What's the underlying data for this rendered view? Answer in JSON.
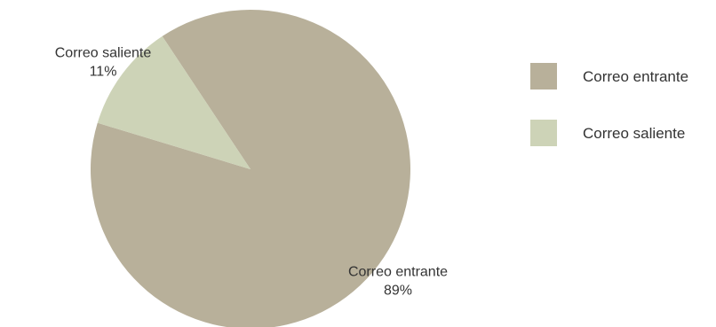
{
  "chart_data": {
    "type": "pie",
    "title": "",
    "slices": [
      {
        "label": "Correo entrante",
        "value": 89,
        "display_pct": "89%",
        "color": "#b8b09a"
      },
      {
        "label": "Correo saliente",
        "value": 11,
        "display_pct": "11%",
        "color": "#cdd3b7"
      }
    ],
    "legend": {
      "placement": "right",
      "entries": [
        "Correo entrante",
        "Correo saliente"
      ]
    },
    "start_angle_deg": 0,
    "direction": "clockwise"
  }
}
